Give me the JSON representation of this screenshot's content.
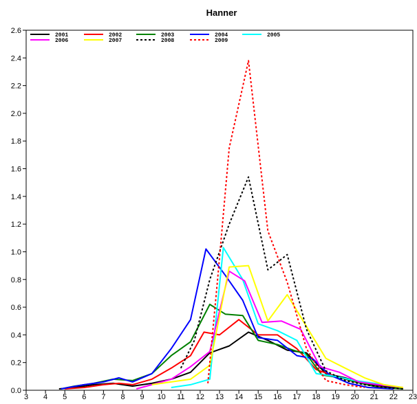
{
  "chart_data": {
    "type": "line",
    "title": "Hanner",
    "xlabel": "",
    "ylabel": "",
    "xlim": [
      3,
      23
    ],
    "ylim": [
      0.0,
      2.6
    ],
    "x_ticks": [
      "3",
      "4",
      "5",
      "6",
      "7",
      "8",
      "9",
      "10",
      "11",
      "12",
      "13",
      "14",
      "15",
      "16",
      "17",
      "18",
      "19",
      "20",
      "21",
      "22",
      "23"
    ],
    "y_ticks": [
      "0.0",
      "0.2",
      "0.4",
      "0.6",
      "0.8",
      "1.0",
      "1.2",
      "1.4",
      "1.6",
      "1.8",
      "2.0",
      "2.2",
      "2.4",
      "2.6"
    ],
    "grid": false,
    "legend_position": "top-left",
    "series": [
      {
        "name": "2001",
        "color": "#000000",
        "dash": "solid",
        "width": 2,
        "points": [
          [
            4.7,
            0.01
          ],
          [
            5.5,
            0.02
          ],
          [
            6.5,
            0.04
          ],
          [
            7.5,
            0.05
          ],
          [
            8.5,
            0.03
          ],
          [
            9.5,
            0.05
          ],
          [
            10.5,
            0.08
          ],
          [
            11.5,
            0.13
          ],
          [
            12.5,
            0.27
          ],
          [
            13.5,
            0.32
          ],
          [
            14.5,
            0.42
          ],
          [
            15.5,
            0.36
          ],
          [
            16.5,
            0.29
          ],
          [
            17.5,
            0.27
          ],
          [
            18.5,
            0.12
          ],
          [
            19.5,
            0.09
          ],
          [
            20.5,
            0.05
          ],
          [
            21.5,
            0.03
          ],
          [
            22.5,
            0.01
          ]
        ]
      },
      {
        "name": "2002",
        "color": "#ff0000",
        "dash": "solid",
        "width": 2,
        "points": [
          [
            5.0,
            0.01
          ],
          [
            6.0,
            0.02
          ],
          [
            7.0,
            0.04
          ],
          [
            7.8,
            0.05
          ],
          [
            8.5,
            0.04
          ],
          [
            9.5,
            0.08
          ],
          [
            10.5,
            0.16
          ],
          [
            11.5,
            0.25
          ],
          [
            12.2,
            0.42
          ],
          [
            13.0,
            0.4
          ],
          [
            14.0,
            0.51
          ],
          [
            15.0,
            0.4
          ],
          [
            16.0,
            0.4
          ],
          [
            17.0,
            0.3
          ],
          [
            18.0,
            0.15
          ],
          [
            19.0,
            0.1
          ],
          [
            20.0,
            0.06
          ],
          [
            21.0,
            0.03
          ],
          [
            22.0,
            0.01
          ]
        ]
      },
      {
        "name": "2003",
        "color": "#008000",
        "dash": "solid",
        "width": 2,
        "points": [
          [
            4.8,
            0.01
          ],
          [
            5.5,
            0.03
          ],
          [
            6.5,
            0.05
          ],
          [
            7.5,
            0.08
          ],
          [
            8.5,
            0.07
          ],
          [
            9.5,
            0.12
          ],
          [
            10.5,
            0.25
          ],
          [
            11.5,
            0.35
          ],
          [
            12.5,
            0.62
          ],
          [
            13.3,
            0.55
          ],
          [
            14.2,
            0.54
          ],
          [
            15.0,
            0.36
          ],
          [
            16.0,
            0.33
          ],
          [
            16.8,
            0.29
          ],
          [
            17.5,
            0.26
          ],
          [
            18.3,
            0.11
          ],
          [
            19.3,
            0.09
          ],
          [
            20.3,
            0.05
          ],
          [
            21.3,
            0.02
          ],
          [
            22.5,
            0.01
          ]
        ]
      },
      {
        "name": "2004",
        "color": "#0000ff",
        "dash": "solid",
        "width": 2,
        "points": [
          [
            4.8,
            0.01
          ],
          [
            6.0,
            0.04
          ],
          [
            7.0,
            0.06
          ],
          [
            7.8,
            0.09
          ],
          [
            8.5,
            0.06
          ],
          [
            9.5,
            0.12
          ],
          [
            10.5,
            0.3
          ],
          [
            11.5,
            0.51
          ],
          [
            12.3,
            1.02
          ],
          [
            13.3,
            0.83
          ],
          [
            14.2,
            0.65
          ],
          [
            15.0,
            0.38
          ],
          [
            16.0,
            0.36
          ],
          [
            17.0,
            0.25
          ],
          [
            17.8,
            0.23
          ],
          [
            18.7,
            0.11
          ],
          [
            19.7,
            0.05
          ],
          [
            20.7,
            0.02
          ],
          [
            22.0,
            0.01
          ]
        ]
      },
      {
        "name": "2005",
        "color": "#00ffff",
        "dash": "solid",
        "width": 2,
        "points": [
          [
            10.5,
            0.02
          ],
          [
            11.5,
            0.04
          ],
          [
            12.5,
            0.08
          ],
          [
            13.2,
            1.03
          ],
          [
            14.2,
            0.8
          ],
          [
            15.0,
            0.48
          ],
          [
            16.0,
            0.43
          ],
          [
            17.0,
            0.36
          ],
          [
            18.0,
            0.12
          ],
          [
            19.0,
            0.1
          ],
          [
            20.0,
            0.07
          ],
          [
            21.0,
            0.05
          ],
          [
            22.0,
            0.03
          ]
        ]
      },
      {
        "name": "2006",
        "color": "#ff00ff",
        "dash": "solid",
        "width": 2,
        "points": [
          [
            8.7,
            0.01
          ],
          [
            9.5,
            0.04
          ],
          [
            10.5,
            0.08
          ],
          [
            11.5,
            0.17
          ],
          [
            12.5,
            0.28
          ],
          [
            13.5,
            0.86
          ],
          [
            14.3,
            0.79
          ],
          [
            15.2,
            0.49
          ],
          [
            16.2,
            0.5
          ],
          [
            17.2,
            0.44
          ],
          [
            18.2,
            0.17
          ],
          [
            19.2,
            0.13
          ],
          [
            20.2,
            0.06
          ],
          [
            21.2,
            0.04
          ],
          [
            22.5,
            0.02
          ]
        ]
      },
      {
        "name": "2007",
        "color": "#ffff00",
        "dash": "solid",
        "width": 2,
        "points": [
          [
            9.5,
            0.04
          ],
          [
            10.5,
            0.06
          ],
          [
            11.5,
            0.08
          ],
          [
            12.5,
            0.18
          ],
          [
            13.5,
            0.89
          ],
          [
            14.5,
            0.9
          ],
          [
            15.5,
            0.5
          ],
          [
            16.5,
            0.69
          ],
          [
            17.5,
            0.46
          ],
          [
            18.5,
            0.23
          ],
          [
            19.5,
            0.16
          ],
          [
            20.5,
            0.09
          ],
          [
            21.5,
            0.04
          ],
          [
            22.5,
            0.02
          ]
        ]
      },
      {
        "name": "2008",
        "color": "#000000",
        "dash": "dashed",
        "width": 2,
        "points": [
          [
            11.0,
            0.16
          ],
          [
            11.7,
            0.36
          ],
          [
            12.5,
            0.8
          ],
          [
            13.5,
            1.2
          ],
          [
            14.5,
            1.54
          ],
          [
            15.5,
            0.87
          ],
          [
            16.5,
            0.98
          ],
          [
            17.5,
            0.44
          ],
          [
            18.5,
            0.14
          ],
          [
            19.5,
            0.07
          ],
          [
            20.5,
            0.04
          ],
          [
            21.5,
            0.02
          ],
          [
            22.5,
            0.01
          ]
        ]
      },
      {
        "name": "2009",
        "color": "#ff0000",
        "dash": "dashed",
        "width": 2,
        "points": [
          [
            12.4,
            0.05
          ],
          [
            12.9,
            0.8
          ],
          [
            13.5,
            1.75
          ],
          [
            14.5,
            2.38
          ],
          [
            15.5,
            1.15
          ],
          [
            16.5,
            0.78
          ],
          [
            17.5,
            0.3
          ],
          [
            18.5,
            0.07
          ],
          [
            19.5,
            0.04
          ],
          [
            20.5,
            0.02
          ]
        ]
      }
    ]
  }
}
